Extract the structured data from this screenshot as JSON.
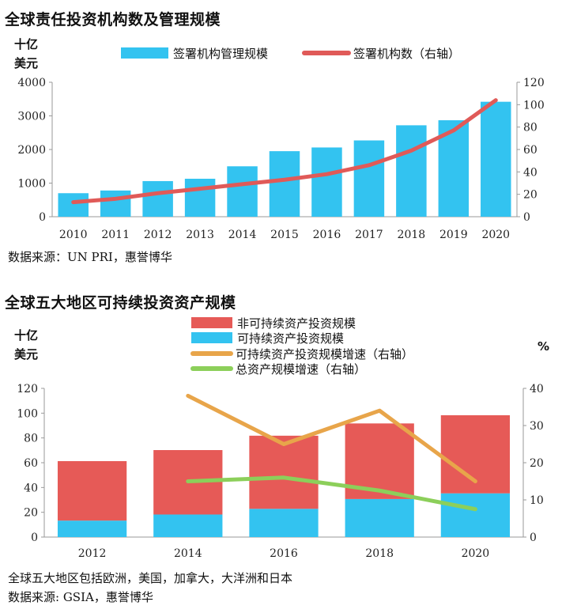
{
  "chart_data": [
    {
      "type": "bar",
      "title": "全球责任投资机构数及管理规模",
      "unit_left": [
        "十亿",
        "美元"
      ],
      "categories": [
        "2010",
        "2011",
        "2012",
        "2013",
        "2014",
        "2015",
        "2016",
        "2017",
        "2018",
        "2019",
        "2020"
      ],
      "series": [
        {
          "name": "签署机构管理规模",
          "type": "bar",
          "axis": "left",
          "color": "#33c3f0",
          "values": [
            700,
            780,
            1060,
            1130,
            1500,
            1950,
            2060,
            2270,
            2720,
            2870,
            3420
          ]
        },
        {
          "name": "签署机构数（右轴）",
          "type": "line",
          "axis": "right",
          "color": "#e05a58",
          "values": [
            13,
            16,
            21,
            25,
            29,
            33,
            38,
            46,
            59,
            77,
            104
          ]
        }
      ],
      "ylim_left": [
        0,
        4000
      ],
      "yticks_left": [
        0,
        1000,
        2000,
        3000,
        4000
      ],
      "ylim_right": [
        0,
        120
      ],
      "yticks_right": [
        0,
        20,
        40,
        60,
        80,
        100,
        120
      ],
      "source": "数据来源：UN PRI，惠誉博华"
    },
    {
      "type": "bar",
      "stacked": true,
      "title": "全球五大地区可持续投资资产规模",
      "unit_left": [
        "十亿",
        "美元"
      ],
      "unit_right": "%",
      "categories": [
        "2012",
        "2014",
        "2016",
        "2018",
        "2020"
      ],
      "series": [
        {
          "name": "非可持续资产投资规模",
          "type": "bar",
          "axis": "left",
          "color": "#e65a57",
          "values": [
            48,
            52,
            59,
            61,
            63
          ]
        },
        {
          "name": "可持续资产投资规模",
          "type": "bar",
          "axis": "left",
          "color": "#33c3f0",
          "values": [
            13.3,
            18.2,
            22.8,
            30.7,
            35.3
          ]
        },
        {
          "name": "可持续资产投资规模增速（右轴）",
          "type": "line",
          "axis": "right",
          "color": "#e8a54a",
          "values": [
            null,
            38,
            25,
            34,
            15
          ]
        },
        {
          "name": "总资产规模增速（右轴）",
          "type": "line",
          "axis": "right",
          "color": "#8ccf5a",
          "values": [
            null,
            15,
            16,
            12.5,
            7.5
          ]
        }
      ],
      "ylim_left": [
        0,
        120
      ],
      "yticks_left": [
        0,
        20,
        40,
        60,
        80,
        100,
        120
      ],
      "ylim_right": [
        0,
        40
      ],
      "yticks_right": [
        0,
        10,
        20,
        30,
        40
      ],
      "footnote": "全球五大地区包括欧洲，美国，加拿大，大洋洲和日本",
      "source": "数据来源: GSIA，惠誉博华"
    }
  ]
}
